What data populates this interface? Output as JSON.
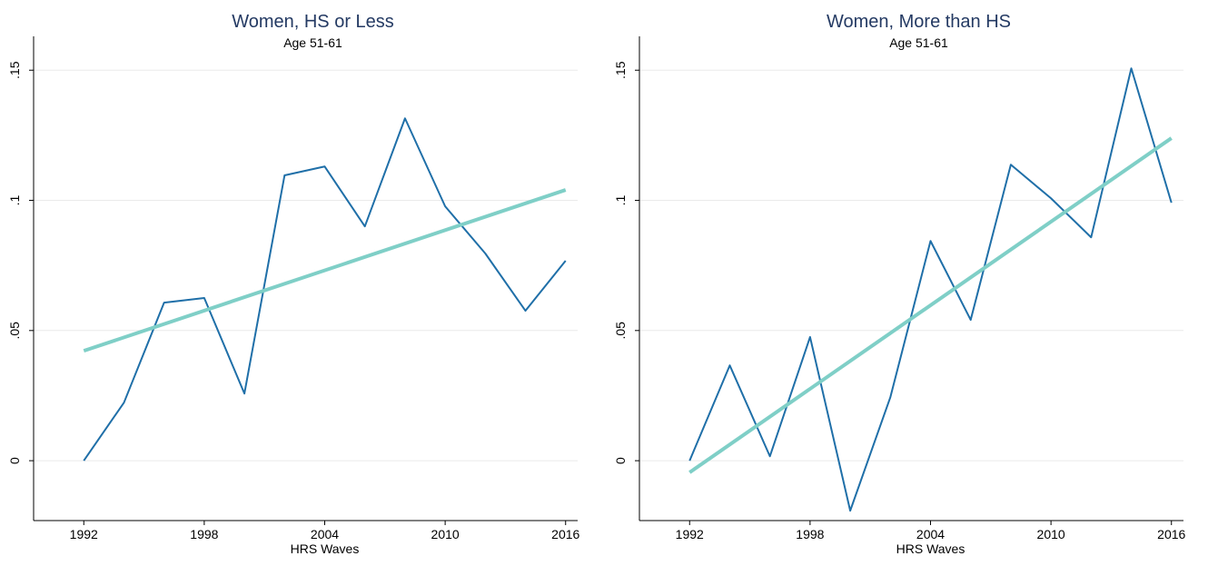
{
  "chart_data": [
    {
      "type": "line",
      "title": "Women, HS or Less",
      "subtitle": "Age 51-61",
      "xlabel": "HRS Waves",
      "xlim": [
        1989.5,
        2016.6
      ],
      "ylim": [
        -0.023,
        0.163
      ],
      "xticks": [
        1992,
        1998,
        2004,
        2010,
        2016
      ],
      "yticks": [
        0,
        {
          "value": 0.05,
          "label": ".05"
        },
        {
          "value": 0.1,
          "label": ".1"
        },
        {
          "value": 0.15,
          "label": ".15"
        }
      ],
      "grid": true,
      "series": [
        {
          "color": "#1f6fa8",
          "x": [
            1992,
            1994,
            1996,
            1998,
            2000,
            2002,
            2004,
            2006,
            2008,
            2010,
            2012,
            2014,
            2016
          ],
          "values": [
            0,
            0.0223,
            0.0607,
            0.0625,
            0.0258,
            0.1096,
            0.113,
            0.09,
            0.1315,
            0.0977,
            0.0796,
            0.0576,
            0.0768
          ]
        },
        {
          "color": "#7fcfc7",
          "x": [
            1992,
            2016
          ],
          "values": [
            0.0422,
            0.104
          ]
        }
      ]
    },
    {
      "type": "line",
      "title": "Women, More than HS",
      "subtitle": "Age 51-61",
      "xlabel": "HRS Waves",
      "xlim": [
        1989.5,
        2016.6
      ],
      "ylim": [
        -0.023,
        0.163
      ],
      "xticks": [
        1992,
        1998,
        2004,
        2010,
        2016
      ],
      "yticks": [
        0,
        {
          "value": 0.05,
          "label": ".05"
        },
        {
          "value": 0.1,
          "label": ".1"
        },
        {
          "value": 0.15,
          "label": ".15"
        }
      ],
      "grid": true,
      "series": [
        {
          "color": "#1f6fa8",
          "x": [
            1992,
            1994,
            1996,
            1998,
            2000,
            2002,
            2004,
            2006,
            2008,
            2010,
            2012,
            2014,
            2016
          ],
          "values": [
            0,
            0.0366,
            0.0017,
            0.0475,
            -0.0192,
            0.0244,
            0.0844,
            0.0541,
            0.1137,
            0.1008,
            0.0858,
            0.1507,
            0.0991
          ]
        },
        {
          "color": "#7fcfc7",
          "x": [
            1992,
            2016
          ],
          "values": [
            -0.0045,
            0.1239
          ]
        }
      ]
    }
  ]
}
